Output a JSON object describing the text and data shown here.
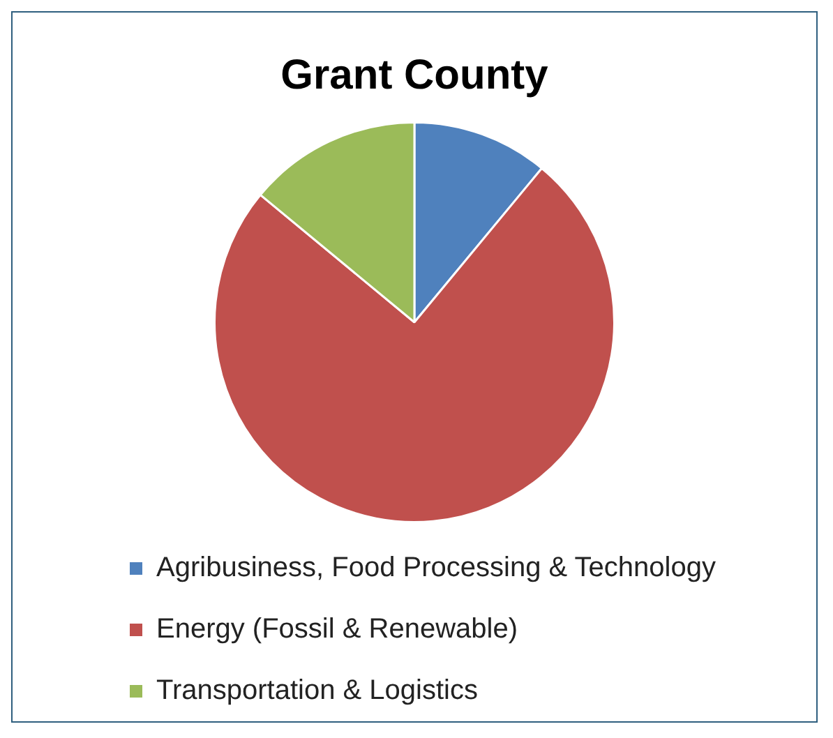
{
  "chart_data": {
    "type": "pie",
    "title": "Grant County",
    "categories": [
      "Agribusiness, Food Processing & Technology",
      "Energy (Fossil & Renewable)",
      "Transportation & Logistics"
    ],
    "values": [
      11,
      75,
      14
    ],
    "colors": [
      "#4f81bd",
      "#c0504d",
      "#9bbb59"
    ],
    "legend": "bottom"
  }
}
